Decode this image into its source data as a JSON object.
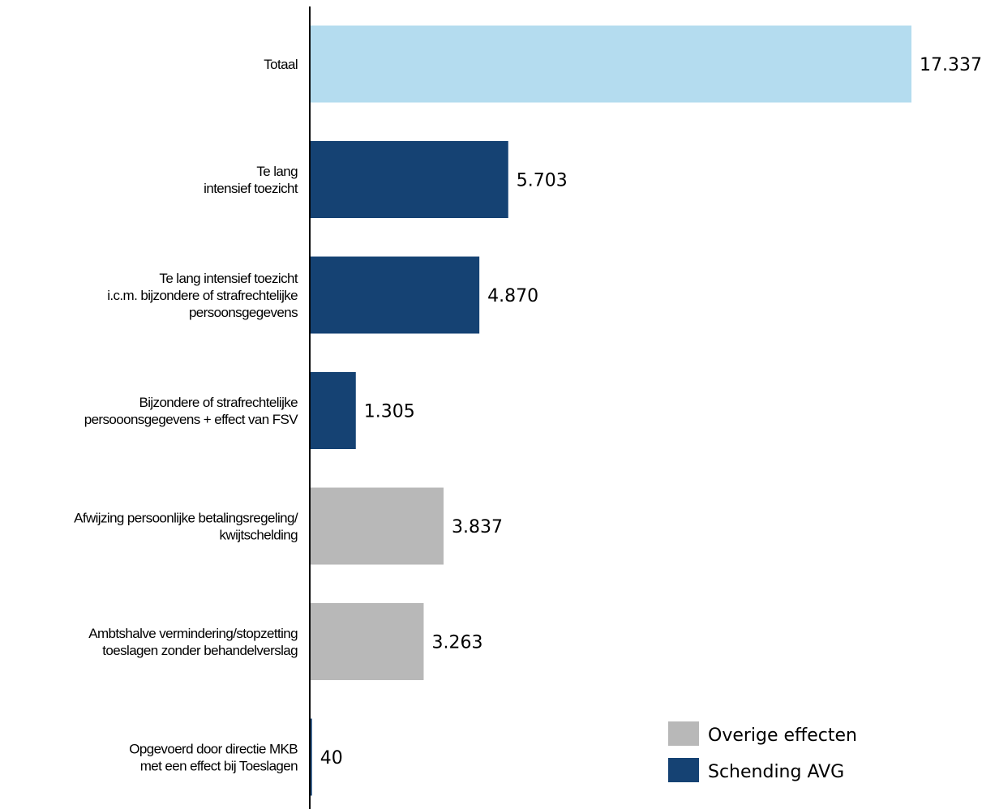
{
  "chart_data": {
    "type": "bar",
    "orientation": "horizontal",
    "categories": [
      [
        "Totaal"
      ],
      [
        "Te lang",
        "intensief toezicht"
      ],
      [
        "Te lang intensief toezicht",
        "i.c.m. bijzondere of strafrechtelijke",
        "persoonsgegevens"
      ],
      [
        "Bijzondere of strafrechtelijke",
        "persooonsgegevens + effect van FSV"
      ],
      [
        "Afwijzing persoonlijke betalingsregeling/",
        "kwijtschelding"
      ],
      [
        "Ambtshalve vermindering/stopzetting",
        "toeslagen zonder behandelverslag"
      ],
      [
        "Opgevoerd door directie MKB",
        "met een effect bij Toeslagen"
      ]
    ],
    "values": [
      17337,
      5703,
      4870,
      1305,
      3837,
      3263,
      40
    ],
    "value_labels": [
      "17.337",
      "5.703",
      "4.870",
      "1.305",
      "3.837",
      "3.263",
      "40"
    ],
    "groups": [
      "total",
      "avg",
      "avg",
      "avg",
      "overig",
      "overig",
      "avg"
    ],
    "colors": {
      "total": "#b4dcef",
      "avg": "#154273",
      "overig": "#b8b8b8",
      "axis": "#000000"
    },
    "xlim": [
      0,
      17337
    ],
    "grid": false,
    "legend": {
      "position": "bottom-right",
      "items": [
        {
          "label": "Overige effecten",
          "group": "overig"
        },
        {
          "label": "Schending AVG",
          "group": "avg"
        }
      ]
    }
  }
}
